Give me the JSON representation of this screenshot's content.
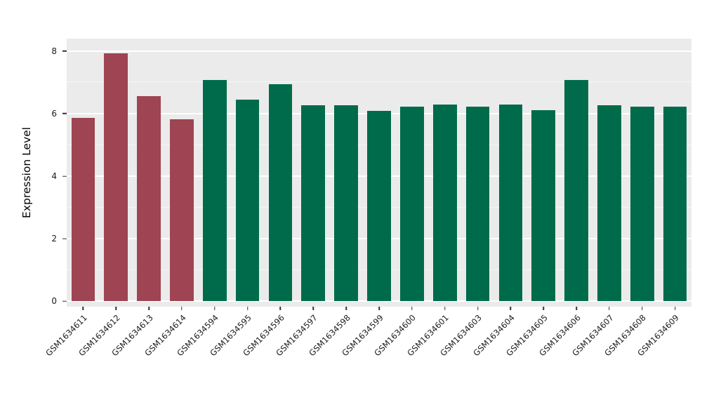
{
  "chart_data": {
    "type": "bar",
    "title": "",
    "xlabel": "",
    "ylabel": "Expression Level",
    "ylim": [
      0,
      8
    ],
    "yticks": [
      0,
      2,
      4,
      6,
      8
    ],
    "yticks_minor": [
      1,
      3,
      5,
      7
    ],
    "grid": "major and minor horizontal white gridlines on gray panel",
    "legend": "none",
    "panel_bg": "#EBEBEB",
    "categories": [
      "GSM1634611",
      "GSM1634612",
      "GSM1634613",
      "GSM1634614",
      "GSM1634594",
      "GSM1634595",
      "GSM1634596",
      "GSM1634597",
      "GSM1634598",
      "GSM1634599",
      "GSM1634600",
      "GSM1634601",
      "GSM1634603",
      "GSM1634604",
      "GSM1634605",
      "GSM1634606",
      "GSM1634607",
      "GSM1634608",
      "GSM1634609"
    ],
    "values": [
      5.87,
      7.92,
      6.55,
      5.83,
      7.07,
      6.45,
      6.95,
      6.28,
      6.28,
      6.08,
      6.22,
      6.3,
      6.23,
      6.3,
      6.12,
      7.07,
      6.27,
      6.23,
      6.23
    ],
    "colors": [
      "#9e4452",
      "#9e4452",
      "#9e4452",
      "#9e4452",
      "#006b4a",
      "#006b4a",
      "#006b4a",
      "#006b4a",
      "#006b4a",
      "#006b4a",
      "#006b4a",
      "#006b4a",
      "#006b4a",
      "#006b4a",
      "#006b4a",
      "#006b4a",
      "#006b4a",
      "#006b4a",
      "#006b4a"
    ],
    "group_colors": {
      "red_group": "#9e4452",
      "green_group": "#006b4a"
    }
  }
}
